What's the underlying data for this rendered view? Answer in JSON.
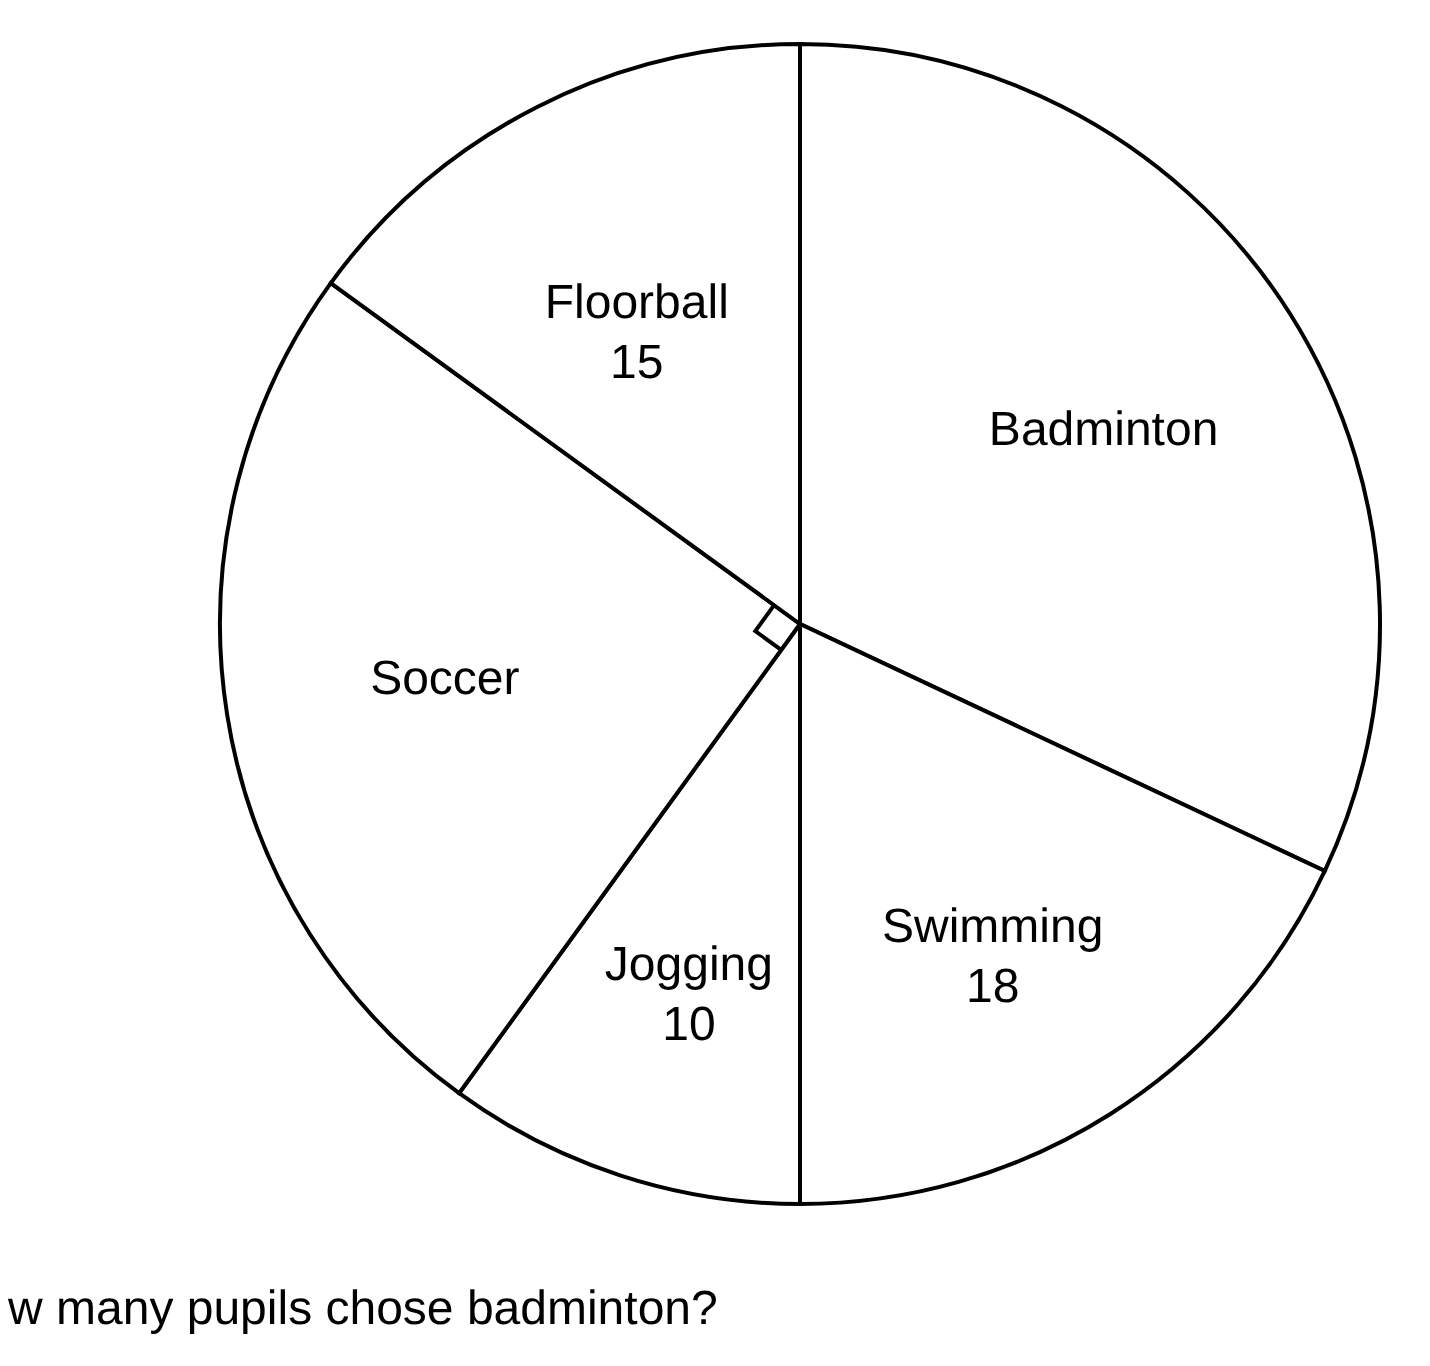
{
  "chart_data": {
    "type": "pie",
    "categories": [
      "Badminton",
      "Swimming",
      "Jogging",
      "Soccer",
      "Floorball"
    ],
    "values": [
      32,
      18,
      10,
      25,
      15
    ],
    "colors": [
      "#ffffff",
      "#ffffff",
      "#ffffff",
      "#ffffff",
      "#ffffff"
    ],
    "value_labels": [
      null,
      "18",
      "10",
      null,
      "15"
    ],
    "annotations": [
      "w many pupils chose badminton?"
    ]
  }
}
